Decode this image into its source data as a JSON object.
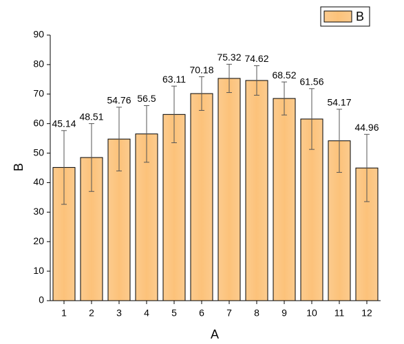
{
  "chart_data": {
    "type": "bar",
    "x_label": "A",
    "y_label": "B",
    "categories": [
      "1",
      "2",
      "3",
      "4",
      "5",
      "6",
      "7",
      "8",
      "9",
      "10",
      "11",
      "12"
    ],
    "series": [
      {
        "name": "B",
        "color": "#fcc27a",
        "values": [
          45.14,
          48.51,
          54.76,
          56.5,
          63.11,
          70.18,
          75.32,
          74.62,
          68.52,
          61.56,
          54.17,
          44.96
        ],
        "errors": [
          12.5,
          11.5,
          10.8,
          9.6,
          9.6,
          5.7,
          4.8,
          5.0,
          5.6,
          10.3,
          10.7,
          11.4
        ]
      }
    ],
    "ylim": [
      0,
      90
    ],
    "yticks": [
      0,
      10,
      20,
      30,
      40,
      50,
      60,
      70,
      80,
      90
    ],
    "legend": "top-right"
  }
}
